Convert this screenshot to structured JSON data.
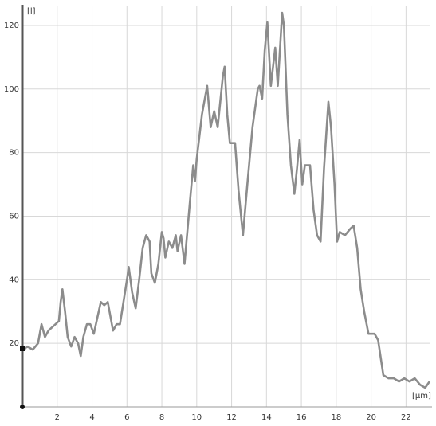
{
  "chart_data": {
    "type": "line",
    "y_label": "[l]",
    "x_label": "[µm]",
    "x": [
      0,
      0.3,
      0.6,
      0.9,
      1.1,
      1.3,
      1.5,
      1.7,
      1.9,
      2.1,
      2.2,
      2.3,
      2.45,
      2.6,
      2.8,
      3.0,
      3.2,
      3.35,
      3.5,
      3.7,
      3.9,
      4.1,
      4.3,
      4.5,
      4.7,
      4.9,
      5.0,
      5.2,
      5.4,
      5.6,
      5.8,
      6.0,
      6.1,
      6.3,
      6.5,
      6.7,
      6.9,
      7.1,
      7.3,
      7.4,
      7.6,
      7.8,
      8.0,
      8.1,
      8.2,
      8.4,
      8.6,
      8.8,
      8.9,
      9.1,
      9.3,
      9.6,
      9.8,
      9.9,
      10.0,
      10.3,
      10.6,
      10.8,
      11.0,
      11.2,
      11.5,
      11.6,
      11.75,
      11.9,
      12.2,
      12.4,
      12.65,
      12.9,
      13.2,
      13.5,
      13.6,
      13.75,
      13.9,
      14.05,
      14.25,
      14.5,
      14.65,
      14.9,
      15.0,
      15.2,
      15.4,
      15.6,
      15.75,
      15.9,
      16.05,
      16.2,
      16.5,
      16.7,
      16.9,
      17.1,
      17.3,
      17.55,
      17.7,
      17.9,
      18.05,
      18.2,
      18.5,
      18.8,
      19.0,
      19.2,
      19.4,
      19.6,
      19.85,
      20.2,
      20.4,
      20.7,
      21.0,
      21.3,
      21.6,
      21.9,
      22.2,
      22.5,
      22.8,
      23.1,
      23.35
    ],
    "values": [
      18,
      19,
      18,
      20,
      26,
      22,
      24,
      25,
      26,
      27,
      33,
      37,
      30,
      22,
      19,
      22,
      20,
      16,
      22,
      26,
      26,
      23,
      28,
      33,
      32,
      33,
      30,
      24,
      26,
      26,
      33,
      40,
      44,
      36,
      31,
      40,
      50,
      54,
      52,
      42,
      39,
      45,
      55,
      53,
      47,
      52,
      50,
      54,
      49,
      54,
      45,
      64,
      76,
      71,
      78,
      92,
      101,
      88,
      93,
      88,
      104,
      107,
      92,
      83,
      83,
      68,
      54,
      70,
      88,
      100,
      101,
      97,
      112,
      121,
      101,
      113,
      101,
      124,
      120,
      92,
      76,
      67,
      75,
      84,
      70,
      76,
      76,
      62,
      54,
      52,
      75,
      96,
      88,
      70,
      52,
      55,
      54,
      56,
      57,
      50,
      37,
      30,
      23,
      23,
      21,
      10,
      9,
      9,
      8,
      9,
      8,
      9,
      7,
      6,
      8
    ],
    "color": "#8c8c8c",
    "xlim": [
      0,
      23.4
    ],
    "ylim": [
      0,
      126
    ],
    "xticks": [
      2,
      4,
      6,
      8,
      10,
      12,
      14,
      16,
      18,
      20,
      22
    ],
    "yticks": [
      20,
      40,
      60,
      80,
      100,
      120
    ],
    "grid": true
  }
}
